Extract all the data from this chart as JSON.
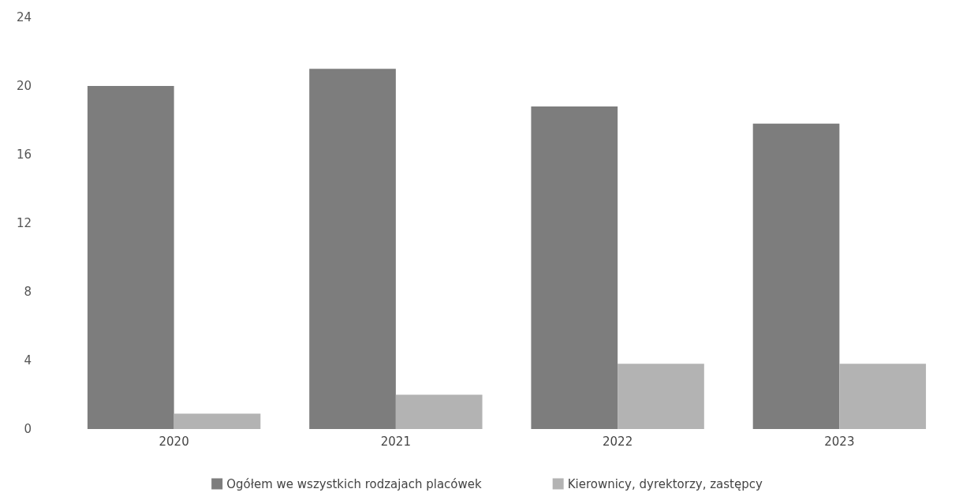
{
  "chart_data": {
    "type": "bar",
    "categories": [
      "2020",
      "2021",
      "2022",
      "2023"
    ],
    "series": [
      {
        "name": "Ogółem we wszystkich rodzajach placówek",
        "color": "#7d7d7d",
        "values": [
          20,
          21,
          18.8,
          17.8
        ]
      },
      {
        "name": "Kierownicy, dyrektorzy, zastępcy",
        "color": "#b3b3b3",
        "values": [
          0.9,
          2.0,
          3.8,
          3.8
        ]
      }
    ],
    "ylim": [
      0,
      24
    ],
    "yticks": [
      0,
      4,
      8,
      12,
      16,
      20,
      24
    ],
    "grid": false,
    "legend": "bottom"
  }
}
